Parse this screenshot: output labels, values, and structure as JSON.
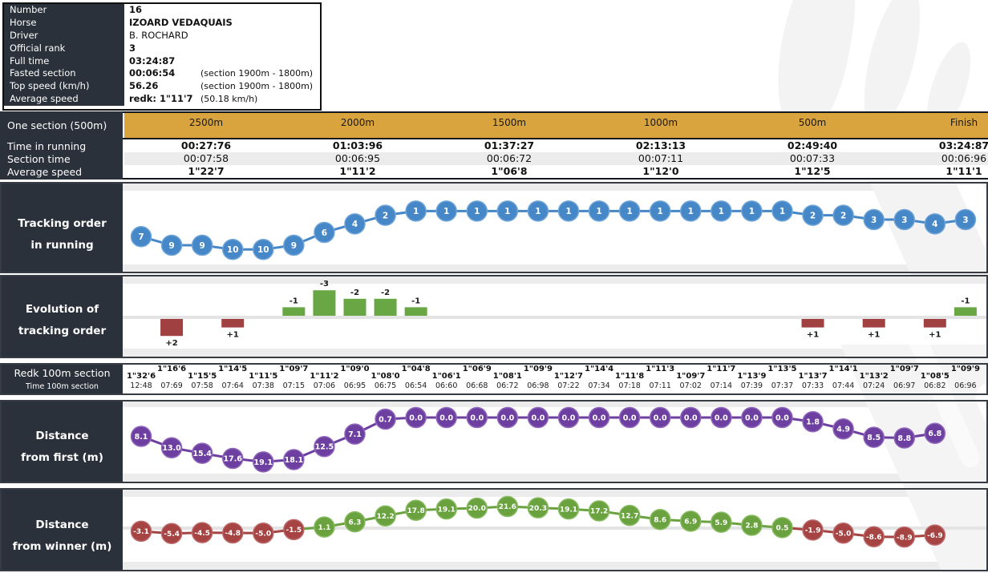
{
  "colors": {
    "dark_panel": "#2b313a",
    "header_orange": "#d9a33e",
    "row_alt": "#ececec",
    "track_blue": "#4687c7",
    "track_blue_ring": "#6fa5d8",
    "purple": "#6d3fa0",
    "purple_ring": "#9068bb",
    "green": "#69a23f",
    "green_ring": "#88bb60",
    "red": "#a64343",
    "red_ring": "#bd6a6a",
    "bar_green": "#69a745",
    "bar_red": "#a04040",
    "axis_gray": "#e4e4e4"
  },
  "info": {
    "rows": [
      {
        "label": "Number",
        "value": "16",
        "note": "",
        "bold": true
      },
      {
        "label": "Horse",
        "value": "IZOARD VEDAQUAIS",
        "note": "",
        "bold": true
      },
      {
        "label": "Driver",
        "value": "B. ROCHARD",
        "note": "",
        "bold": false
      },
      {
        "label": "Official rank",
        "value": "3",
        "note": "",
        "bold": true
      },
      {
        "label": "Full time",
        "value": "03:24:87",
        "note": "",
        "bold": true
      },
      {
        "label": "Fasted section",
        "value": "00:06:54",
        "note": "(section 1900m - 1800m)",
        "bold": true
      },
      {
        "label": "Top speed (km/h)",
        "value": "56.26",
        "note": "(section 1900m - 1800m)",
        "bold": true
      },
      {
        "label": "Average speed",
        "value": "redk: 1\"11'7",
        "note": "(50.18 km/h)",
        "bold": true
      }
    ]
  },
  "section_table": {
    "corner_label": "One section (500m)",
    "headers": [
      "2500m",
      "2000m",
      "1500m",
      "1000m",
      "500m",
      "Finish"
    ],
    "rows": [
      {
        "label": "Time in running",
        "bold": true,
        "values": [
          "00:27:76",
          "01:03:96",
          "01:37:27",
          "02:13:13",
          "02:49:40",
          "03:24:87"
        ]
      },
      {
        "label": "Section time",
        "bold": false,
        "values": [
          "00:07:58",
          "00:06:95",
          "00:06:72",
          "00:07:11",
          "00:07:33",
          "00:06:96"
        ]
      },
      {
        "label": "Average speed",
        "bold": true,
        "values": [
          "1\"22'7",
          "1\"11'2",
          "1\"06'8",
          "1\"12'0",
          "1\"12'5",
          "1\"11'1"
        ]
      }
    ]
  },
  "chart_data": [
    {
      "type": "line",
      "name": "tracking_order_in_running",
      "title_lines": [
        "Tracking order",
        "in running"
      ],
      "ylim": [
        1,
        10
      ],
      "values": [
        7,
        9,
        9,
        10,
        10,
        9,
        6,
        4,
        2,
        1,
        1,
        1,
        1,
        1,
        1,
        1,
        1,
        1,
        1,
        1,
        1,
        1,
        2,
        2,
        3,
        3,
        4,
        3
      ]
    },
    {
      "type": "bar",
      "name": "evolution_of_tracking_order",
      "title_lines": [
        "Evolution of",
        "tracking order"
      ],
      "values": [
        0,
        2,
        0,
        1,
        0,
        -1,
        -3,
        -2,
        -2,
        -1,
        0,
        0,
        0,
        0,
        0,
        0,
        0,
        0,
        0,
        0,
        0,
        0,
        1,
        0,
        1,
        0,
        1,
        -1
      ]
    },
    {
      "type": "table",
      "name": "redk_100m_section",
      "title_lines": [
        "Redk 100m section",
        "Time 100m section"
      ],
      "redk": [
        "1\"32'6",
        "1\"16'6",
        "1\"15'5",
        "1\"14'5",
        "1\"11'5",
        "1\"09'7",
        "1\"11'2",
        "1\"09'0",
        "1\"08'0",
        "1\"04'8",
        "1\"06'1",
        "1\"06'9",
        "1\"08'1",
        "1\"09'9",
        "1\"12'7",
        "1\"14'4",
        "1\"11'8",
        "1\"11'3",
        "1\"09'7",
        "1\"11'7",
        "1\"13'9",
        "1\"13'5",
        "1\"13'7",
        "1\"14'1",
        "1\"13'2",
        "1\"09'7",
        "1\"08'5",
        "1\"09'9"
      ],
      "times": [
        "12:48",
        "07:69",
        "07:58",
        "07:64",
        "07:38",
        "07:15",
        "07:06",
        "06:95",
        "06:75",
        "06:54",
        "06:60",
        "06:68",
        "06:72",
        "06:98",
        "07:22",
        "07:34",
        "07:18",
        "07:11",
        "07:02",
        "07:14",
        "07:39",
        "07:37",
        "07:33",
        "07:44",
        "07:24",
        "06:97",
        "06:82",
        "06:96"
      ]
    },
    {
      "type": "line",
      "name": "distance_from_first_m",
      "title_lines": [
        "Distance",
        "from first (m)"
      ],
      "values": [
        8.1,
        13.0,
        15.4,
        17.6,
        19.1,
        18.1,
        12.5,
        7.1,
        0.7,
        0.0,
        0.0,
        0.0,
        0.0,
        0.0,
        0.0,
        0.0,
        0.0,
        0.0,
        0.0,
        0.0,
        0.0,
        0.0,
        1.8,
        4.9,
        8.5,
        8.8,
        6.8
      ]
    },
    {
      "type": "line",
      "name": "distance_from_winner_m",
      "title_lines": [
        "Distance",
        "from winner (m)"
      ],
      "values": [
        -3.1,
        -5.4,
        -4.5,
        -4.8,
        -5.0,
        -1.5,
        1.1,
        6.3,
        12.2,
        17.8,
        19.1,
        20.0,
        21.6,
        20.3,
        19.1,
        17.2,
        12.7,
        8.6,
        6.9,
        5.9,
        2.8,
        0.5,
        -1.9,
        -5.0,
        -8.6,
        -8.9,
        -6.9
      ]
    }
  ]
}
